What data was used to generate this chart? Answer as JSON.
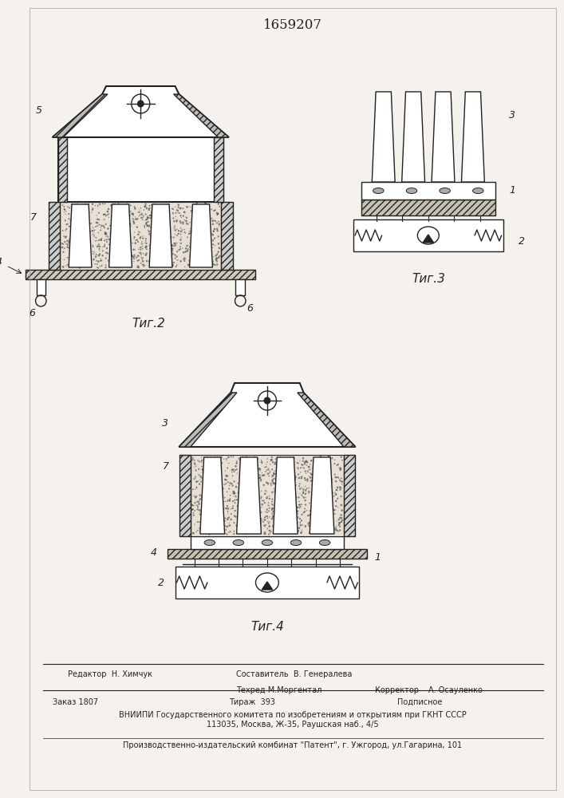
{
  "title": "1659207",
  "fig2_label": "Τиг.2",
  "fig3_label": "Τиг.3",
  "fig4_label": "Τиг.4",
  "bg_color": "#f5f2ee",
  "line_color": "#222222",
  "concrete_color": "#d8d0c4",
  "hatch_fill": "#c0b8ac",
  "white": "#ffffff",
  "footer": {
    "editor": "Редактор  Н. Химчук",
    "author": "Составитель  В. Генералева",
    "techred": "Техред М.Моргентал",
    "corrector": "Корректор",
    "corrector_name": "А. Осауленко",
    "order": "Заказ 1807",
    "tirazh": "Тираж  393",
    "podpisnoe": "Подписное",
    "vniipи": "ВНИИПИ Государственного комитета по изобретениям и открытиям при ГКНТ СССР",
    "address": "113035, Москва, Ж-35, Раушская наб., 4/5",
    "patent": "Производственно-издательский комбинат \"Патент\", г. Ужгород, ул.Гагарина, 101"
  }
}
